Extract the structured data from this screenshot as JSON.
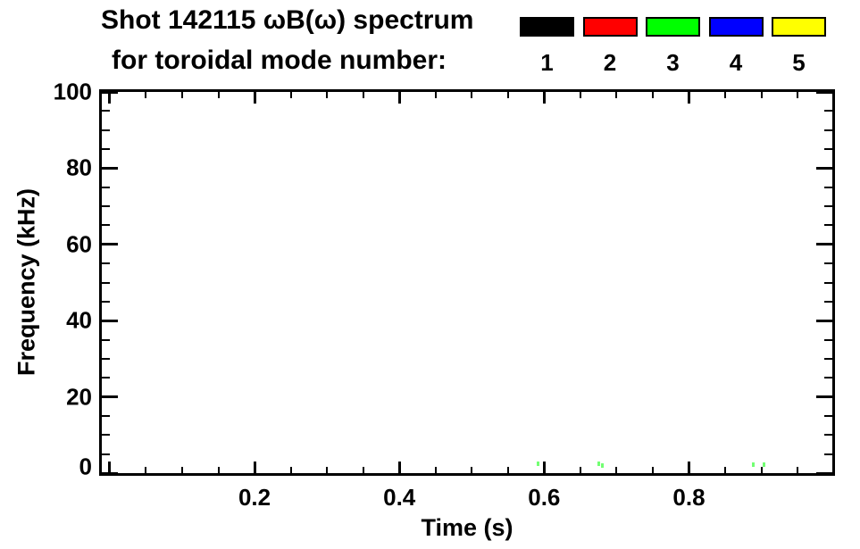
{
  "chart_data": {
    "type": "scatter",
    "title": "Shot 142115 ωB(ω) spectrum",
    "subtitle": "for toroidal mode number:",
    "xlabel": "Time (s)",
    "ylabel": "Frequency (kHz)",
    "xlim": [
      -0.011,
      0.998
    ],
    "ylim": [
      0,
      100
    ],
    "grid": false,
    "legend_position": "top-right",
    "x_major_ticks": [
      {
        "value": 0.0,
        "label": ""
      },
      {
        "value": 0.2,
        "label": "0.2"
      },
      {
        "value": 0.4,
        "label": "0.4"
      },
      {
        "value": 0.6,
        "label": "0.6"
      },
      {
        "value": 0.8,
        "label": "0.8"
      }
    ],
    "x_minor_step": 0.05,
    "y_major_ticks": [
      {
        "value": 0,
        "label": "0"
      },
      {
        "value": 20,
        "label": "20"
      },
      {
        "value": 40,
        "label": "40"
      },
      {
        "value": 60,
        "label": "60"
      },
      {
        "value": 80,
        "label": "80"
      },
      {
        "value": 100,
        "label": "100"
      }
    ],
    "y_minor_step": 5,
    "series": [
      {
        "name": "1",
        "color": "#000000",
        "points": []
      },
      {
        "name": "2",
        "color": "#ff0000",
        "points": []
      },
      {
        "name": "3",
        "color": "#00ff00",
        "points": [
          {
            "t": 0.592,
            "f_khz": 2.5
          },
          {
            "t": 0.676,
            "f_khz": 2.5
          },
          {
            "t": 0.68,
            "f_khz": 2.1
          },
          {
            "t": 0.889,
            "f_khz": 2.3
          },
          {
            "t": 0.904,
            "f_khz": 2.3
          }
        ]
      },
      {
        "name": "4",
        "color": "#0000ff",
        "points": []
      },
      {
        "name": "5",
        "color": "#ffff00",
        "points": []
      }
    ]
  }
}
